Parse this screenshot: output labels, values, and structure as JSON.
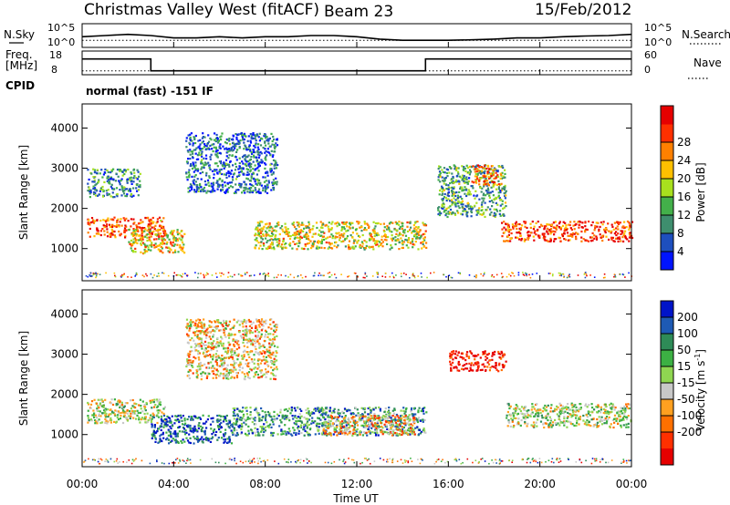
{
  "header": {
    "title": "Christmas Valley West (fitACF)",
    "beam": "Beam 23",
    "date": "15/Feb/2012"
  },
  "chart_data": [
    {
      "type": "line",
      "name": "noise-panel",
      "left_label": "N.Sky",
      "right_label": "N.Search",
      "left_ticks": [
        "10^5",
        "10^0"
      ],
      "right_ticks": [
        "10^5",
        "10^0"
      ],
      "xlim": [
        0,
        24
      ],
      "series": [
        {
          "name": "N.Sky",
          "style": "solid",
          "x": [
            0,
            1,
            2,
            3,
            4,
            5,
            6,
            7,
            8,
            9,
            10,
            11,
            12,
            13,
            14,
            15,
            16,
            17,
            18,
            19,
            20,
            21,
            22,
            23,
            24
          ],
          "y": [
            0.45,
            0.5,
            0.55,
            0.5,
            0.4,
            0.4,
            0.45,
            0.4,
            0.45,
            0.45,
            0.5,
            0.5,
            0.45,
            0.35,
            0.3,
            0.3,
            0.3,
            0.32,
            0.35,
            0.4,
            0.4,
            0.45,
            0.48,
            0.5,
            0.55
          ]
        },
        {
          "name": "N.Search",
          "style": "dotted",
          "x": [
            0,
            24
          ],
          "y": [
            0.3,
            0.3
          ]
        }
      ]
    },
    {
      "type": "line",
      "name": "freq-panel",
      "left_label": "Freq.",
      "left_unit": "[MHz]",
      "right_label": "Nave",
      "left_ticks": [
        "18",
        "8"
      ],
      "right_ticks": [
        "60",
        "0"
      ],
      "xlim": [
        0,
        24
      ],
      "series": [
        {
          "name": "Freq.",
          "style": "solid",
          "x": [
            0,
            3,
            3,
            15,
            15,
            24
          ],
          "y": [
            14,
            14,
            8,
            8,
            14,
            14
          ]
        },
        {
          "name": "Nave",
          "style": "dotted",
          "x": [
            0,
            24
          ],
          "y": [
            10,
            10
          ]
        }
      ]
    },
    {
      "type": "label",
      "name": "cpid",
      "label": "CPID",
      "text": "normal (fast) -151 IF"
    },
    {
      "type": "heatmap",
      "name": "power-panel",
      "ylabel": "Slant Range [km]",
      "yticks": [
        1000,
        2000,
        3000,
        4000
      ],
      "ylim": [
        200,
        4600
      ],
      "xlim": [
        0,
        24
      ],
      "colorbar_label": "Power [dB]",
      "colorbar_ticks": [
        "4",
        "8",
        "12",
        "16",
        "20",
        "24",
        "28"
      ],
      "colors": [
        "#0014ff",
        "#1e4fbe",
        "#3e8e6e",
        "#43b04a",
        "#a8e01e",
        "#ffc000",
        "#ff8000",
        "#ff3000",
        "#e60000"
      ],
      "regions": [
        {
          "t0": 0.2,
          "t1": 3.6,
          "r0": 1300,
          "r1": 1800,
          "level": 0.8
        },
        {
          "t0": 2.0,
          "t1": 4.5,
          "r0": 900,
          "r1": 1500,
          "level": 0.6
        },
        {
          "t0": 0.2,
          "t1": 2.5,
          "r0": 2300,
          "r1": 3000,
          "level": 0.3
        },
        {
          "t0": 4.5,
          "t1": 8.5,
          "r0": 2400,
          "r1": 3900,
          "level": 0.2
        },
        {
          "t0": 7.5,
          "t1": 15.0,
          "r0": 1000,
          "r1": 1700,
          "level": 0.55
        },
        {
          "t0": 15.5,
          "t1": 18.5,
          "r0": 1800,
          "r1": 3100,
          "level": 0.35
        },
        {
          "t0": 17.0,
          "t1": 18.3,
          "r0": 2600,
          "r1": 3100,
          "level": 0.7
        },
        {
          "t0": 18.3,
          "t1": 24.0,
          "r0": 1200,
          "r1": 1700,
          "level": 0.85
        }
      ]
    },
    {
      "type": "heatmap",
      "name": "velocity-panel",
      "ylabel": "Slant Range [km]",
      "yticks": [
        1000,
        2000,
        3000,
        4000
      ],
      "ylim": [
        200,
        4600
      ],
      "xlim": [
        0,
        24
      ],
      "xticks": [
        "00:00",
        "04:00",
        "08:00",
        "12:00",
        "16:00",
        "20:00",
        "00:00"
      ],
      "xlabel": "Time UT",
      "colorbar_label": "Velocity [m s",
      "colorbar_unit_sup": "-1",
      "colorbar_ticks": [
        "200",
        "100",
        "50",
        "15",
        "-15",
        "-50",
        "-100",
        "-200"
      ],
      "colors": [
        "#0014c8",
        "#1e5ab4",
        "#2e8b57",
        "#3cb043",
        "#8fd651",
        "#c8c8c8",
        "#ffa020",
        "#ff7000",
        "#ff3000",
        "#e60000"
      ],
      "regions": [
        {
          "t0": 0.2,
          "t1": 3.6,
          "r0": 1300,
          "r1": 1900,
          "level": 0.5
        },
        {
          "t0": 3.0,
          "t1": 6.5,
          "r0": 800,
          "r1": 1500,
          "level": 0.15
        },
        {
          "t0": 6.5,
          "t1": 15.0,
          "r0": 1000,
          "r1": 1700,
          "level": 0.3
        },
        {
          "t0": 10.5,
          "t1": 14.5,
          "r0": 1000,
          "r1": 1500,
          "level": 0.65
        },
        {
          "t0": 4.5,
          "t1": 8.5,
          "r0": 2400,
          "r1": 3900,
          "level": 0.6
        },
        {
          "t0": 16.0,
          "t1": 18.5,
          "r0": 2600,
          "r1": 3100,
          "level": 0.95
        },
        {
          "t0": 18.5,
          "t1": 24.0,
          "r0": 1200,
          "r1": 1800,
          "level": 0.5
        }
      ]
    }
  ]
}
